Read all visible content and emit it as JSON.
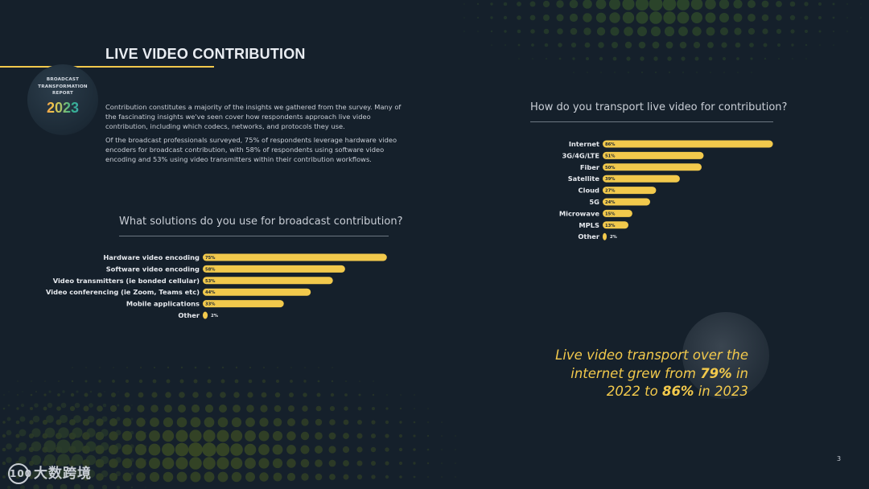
{
  "page": {
    "title": "LIVE VIDEO CONTRIBUTION",
    "logo": {
      "lines": [
        "BROADCAST",
        "TRANSFORMATION",
        "REPORT"
      ],
      "year": "2023"
    },
    "intro": [
      "Contribution constitutes a majority of the insights we gathered from the survey. Many of the fascinating insights we've seen cover how respondents approach live video contribution, including which codecs, networks, and protocols they use.",
      "Of the broadcast professionals surveyed, 75% of respondents leverage hardware video encoders for broadcast contribution, with 58% of respondents using software video encoding and 53% using video transmitters within their contribution workflows."
    ],
    "callout": {
      "line1": "Live video transport over the",
      "line2_pre": "internet grew from ",
      "line2_bold": "79%",
      "line2_post": " in",
      "line3_pre": "2022 to ",
      "line3_bold": "86%",
      "line3_post": " in 2023"
    },
    "page_number": "3",
    "watermark": {
      "icon": "100",
      "text": "大数跨境"
    },
    "colors": {
      "background": "#15202b",
      "accent": "#f2c94c"
    }
  },
  "chart_data": [
    {
      "type": "bar",
      "orientation": "horizontal",
      "title": "What solutions do you use for broadcast contribution?",
      "categories": [
        "Hardware video encoding",
        "Software video encoding",
        "Video transmitters (ie bonded cellular)",
        "Video conferencing (ie Zoom, Teams etc)",
        "Mobile applications",
        "Other"
      ],
      "values": [
        75,
        58,
        53,
        44,
        33,
        2
      ],
      "value_labels": [
        "75%",
        "58%",
        "53%",
        "44%",
        "33%",
        "2%"
      ],
      "unit": "%",
      "xlim": [
        0,
        100
      ],
      "grid": false,
      "legend": "none"
    },
    {
      "type": "bar",
      "orientation": "horizontal",
      "title": "How do you transport live video for contribution?",
      "categories": [
        "Internet",
        "3G/4G/LTE",
        "Fiber",
        "Satellite",
        "Cloud",
        "5G",
        "Microwave",
        "MPLS",
        "Other"
      ],
      "values": [
        86,
        51,
        50,
        39,
        27,
        24,
        15,
        13,
        2
      ],
      "value_labels": [
        "86%",
        "51%",
        "50%",
        "39%",
        "27%",
        "24%",
        "15%",
        "13%",
        "2%"
      ],
      "unit": "%",
      "xlim": [
        0,
        100
      ],
      "grid": false,
      "legend": "none"
    }
  ]
}
